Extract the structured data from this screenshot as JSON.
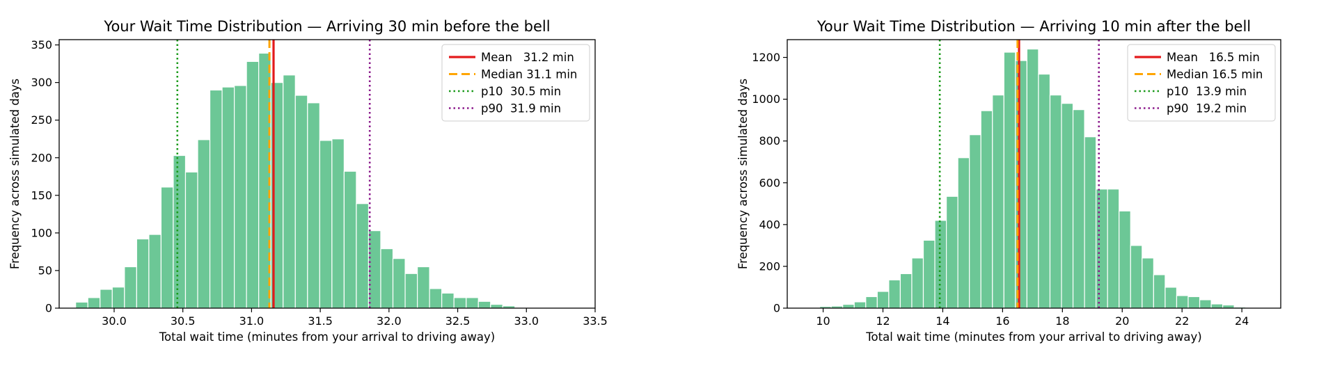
{
  "colors": {
    "bar_fill": "#6cc796",
    "bar_edge": "#ffffff",
    "mean": "#e31a1c",
    "median": "#ffa500",
    "p10": "#1a9a1a",
    "p90": "#8b1a8b"
  },
  "chart_data": [
    {
      "type": "bar",
      "title": "Your Wait Time Distribution — Arriving 30 min before the bell",
      "xlabel": "Total wait time (minutes from your arrival to driving away)",
      "ylabel": "Frequency across simulated days",
      "xlim": [
        29.6,
        33.5
      ],
      "ylim": [
        0,
        357
      ],
      "xticks": [
        30.0,
        30.5,
        31.0,
        31.5,
        32.0,
        32.5,
        33.0,
        33.5
      ],
      "xtick_labels": [
        "30.0",
        "30.5",
        "31.0",
        "31.5",
        "32.0",
        "32.5",
        "33.0",
        "33.5"
      ],
      "yticks": [
        0,
        50,
        100,
        150,
        200,
        250,
        300,
        350
      ],
      "ytick_labels": [
        "0",
        "50",
        "100",
        "150",
        "200",
        "250",
        "300",
        "350"
      ],
      "grid": false,
      "legend_position": "top-right",
      "bins": {
        "start": 29.72,
        "width": 0.0888,
        "counts": [
          8,
          14,
          25,
          28,
          55,
          92,
          98,
          161,
          203,
          181,
          224,
          290,
          294,
          296,
          328,
          339,
          300,
          310,
          283,
          273,
          223,
          225,
          182,
          139,
          103,
          79,
          66,
          46,
          55,
          26,
          20,
          14,
          14,
          9,
          5,
          3,
          1,
          1,
          0,
          1
        ]
      },
      "reference_lines": [
        {
          "key": "mean",
          "label": "Mean   31.2 min",
          "x": 31.16,
          "style": "solid"
        },
        {
          "key": "median",
          "label": "Median 31.1 min",
          "x": 31.13,
          "style": "dashed"
        },
        {
          "key": "p10",
          "label": "p10  30.5 min",
          "x": 30.46,
          "style": "dotted"
        },
        {
          "key": "p90",
          "label": "p90  31.9 min",
          "x": 31.86,
          "style": "dotted"
        }
      ]
    },
    {
      "type": "bar",
      "title": "Your Wait Time Distribution — Arriving 10 min after the bell",
      "xlabel": "Total wait time (minutes from your arrival to driving away)",
      "ylabel": "Frequency across simulated days",
      "xlim": [
        8.8,
        25.3
      ],
      "ylim": [
        0,
        1285
      ],
      "xticks": [
        10,
        12,
        14,
        16,
        18,
        20,
        22,
        24
      ],
      "xtick_labels": [
        "10",
        "12",
        "14",
        "16",
        "18",
        "20",
        "22",
        "24"
      ],
      "yticks": [
        0,
        200,
        400,
        600,
        800,
        1000,
        1200
      ],
      "ytick_labels": [
        "0",
        "200",
        "400",
        "600",
        "800",
        "1000",
        "1200"
      ],
      "grid": false,
      "legend_position": "top-right",
      "bins": {
        "start": 9.5,
        "width": 0.385,
        "counts": [
          3,
          8,
          10,
          18,
          30,
          55,
          80,
          135,
          165,
          240,
          325,
          420,
          535,
          720,
          830,
          945,
          1020,
          1225,
          1185,
          1240,
          1120,
          1020,
          980,
          950,
          820,
          570,
          570,
          465,
          300,
          240,
          160,
          100,
          60,
          55,
          40,
          20,
          15,
          5,
          3,
          2
        ]
      },
      "reference_lines": [
        {
          "key": "mean",
          "label": "Mean   16.5 min",
          "x": 16.55,
          "style": "solid"
        },
        {
          "key": "median",
          "label": "Median 16.5 min",
          "x": 16.5,
          "style": "dashed"
        },
        {
          "key": "p10",
          "label": "p10  13.9 min",
          "x": 13.9,
          "style": "dotted"
        },
        {
          "key": "p90",
          "label": "p90  19.2 min",
          "x": 19.22,
          "style": "dotted"
        }
      ]
    }
  ]
}
